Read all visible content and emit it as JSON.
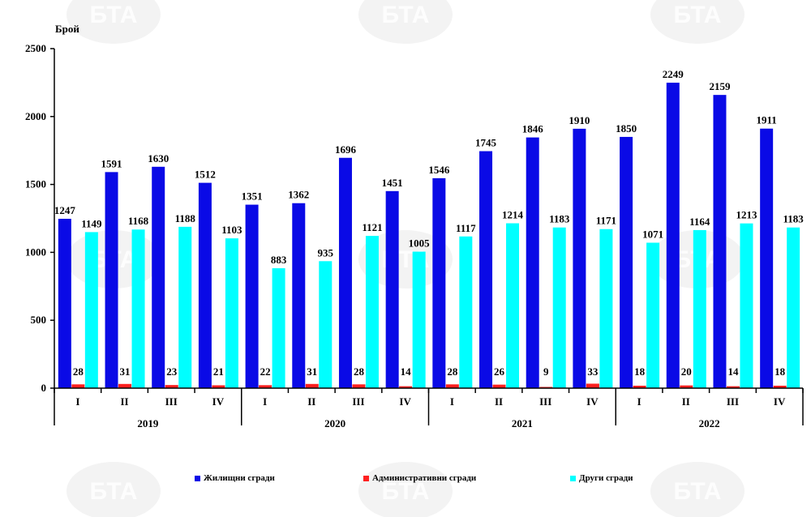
{
  "chart_data": {
    "type": "bar",
    "ylabel": "Брой",
    "ylim": [
      0,
      2500
    ],
    "yticks": [
      0,
      500,
      1000,
      1500,
      2000,
      2500
    ],
    "quarters": [
      "I",
      "II",
      "III",
      "IV",
      "I",
      "II",
      "III",
      "IV",
      "I",
      "II",
      "III",
      "IV",
      "I",
      "II",
      "III",
      "IV"
    ],
    "years": [
      {
        "label": "2019",
        "start": 0,
        "end": 3
      },
      {
        "label": "2020",
        "start": 4,
        "end": 7
      },
      {
        "label": "2021",
        "start": 8,
        "end": 11
      },
      {
        "label": "2022",
        "start": 12,
        "end": 15
      }
    ],
    "series": [
      {
        "name": "Жилищни сгради",
        "color": "#0a0ae6",
        "values": [
          1247,
          1591,
          1630,
          1512,
          1351,
          1362,
          1696,
          1451,
          1546,
          1745,
          1846,
          1910,
          1850,
          2249,
          2159,
          1911
        ]
      },
      {
        "name": "Административни сгради",
        "color": "#ff2020",
        "values": [
          28,
          31,
          23,
          21,
          22,
          31,
          28,
          14,
          28,
          26,
          9,
          33,
          18,
          20,
          14,
          18
        ]
      },
      {
        "name": "Други сгради",
        "color": "#00ffff",
        "values": [
          1149,
          1168,
          1188,
          1103,
          883,
          935,
          1121,
          1005,
          1117,
          1214,
          1183,
          1171,
          1071,
          1164,
          1213,
          1183
        ]
      }
    ],
    "legend_position": "bottom",
    "grid": false
  },
  "watermark": "БТА"
}
